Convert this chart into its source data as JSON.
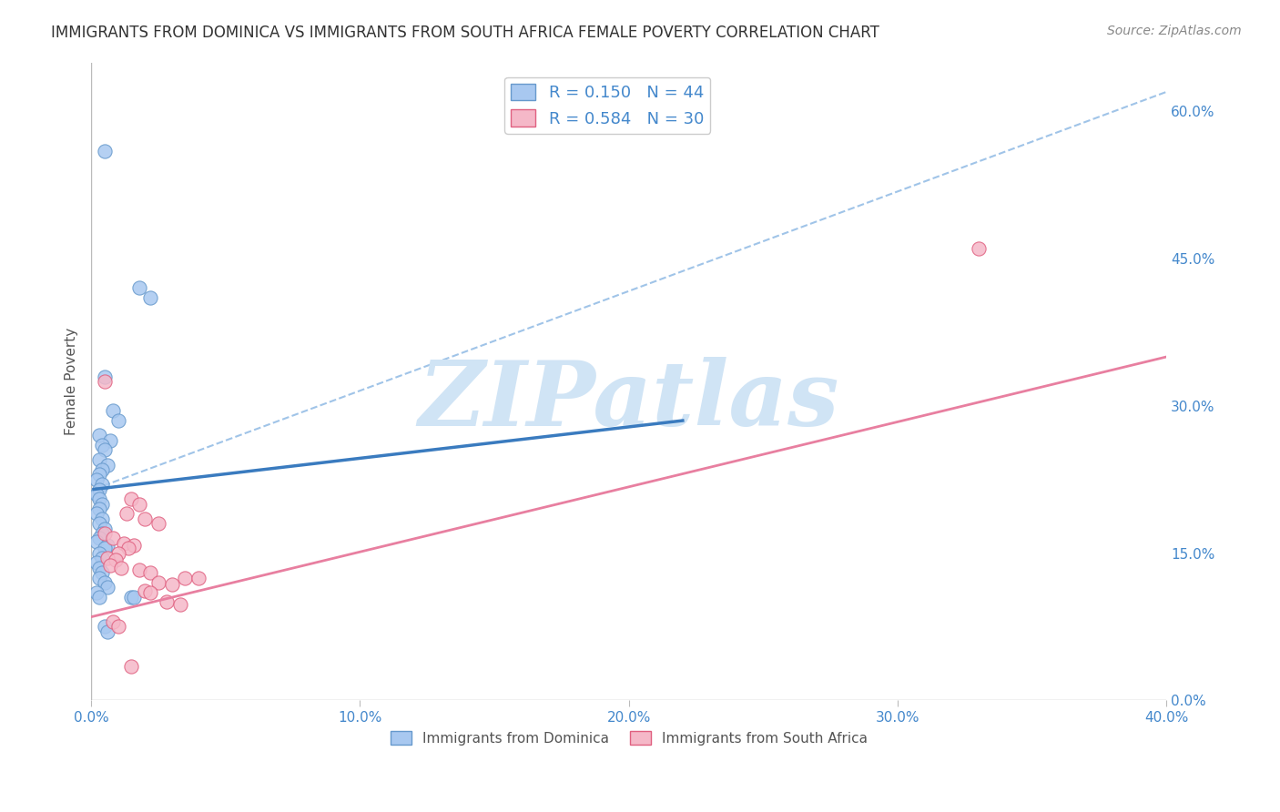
{
  "title": "IMMIGRANTS FROM DOMINICA VS IMMIGRANTS FROM SOUTH AFRICA FEMALE POVERTY CORRELATION CHART",
  "source": "Source: ZipAtlas.com",
  "ylabel": "Female Poverty",
  "xlim": [
    0.0,
    0.4
  ],
  "ylim": [
    0.0,
    0.65
  ],
  "yticks": [
    0.0,
    0.15,
    0.3,
    0.45,
    0.6
  ],
  "xticks": [
    0.0,
    0.1,
    0.2,
    0.3,
    0.4
  ],
  "legend_entries": [
    {
      "label": "R = 0.150   N = 44",
      "color": "#7fb3e8"
    },
    {
      "label": "R = 0.584   N = 30",
      "color": "#f48fb1"
    }
  ],
  "bottom_legend": [
    {
      "label": "Immigrants from Dominica",
      "color": "#7fb3e8"
    },
    {
      "label": "Immigrants from South Africa",
      "color": "#f48fb1"
    }
  ],
  "dominica_scatter": [
    [
      0.005,
      0.56
    ],
    [
      0.018,
      0.42
    ],
    [
      0.022,
      0.41
    ],
    [
      0.005,
      0.33
    ],
    [
      0.008,
      0.295
    ],
    [
      0.01,
      0.285
    ],
    [
      0.003,
      0.27
    ],
    [
      0.007,
      0.265
    ],
    [
      0.004,
      0.26
    ],
    [
      0.005,
      0.255
    ],
    [
      0.003,
      0.245
    ],
    [
      0.006,
      0.24
    ],
    [
      0.004,
      0.235
    ],
    [
      0.003,
      0.23
    ],
    [
      0.002,
      0.225
    ],
    [
      0.004,
      0.22
    ],
    [
      0.003,
      0.215
    ],
    [
      0.002,
      0.21
    ],
    [
      0.003,
      0.205
    ],
    [
      0.004,
      0.2
    ],
    [
      0.003,
      0.195
    ],
    [
      0.002,
      0.19
    ],
    [
      0.004,
      0.185
    ],
    [
      0.003,
      0.18
    ],
    [
      0.005,
      0.175
    ],
    [
      0.004,
      0.17
    ],
    [
      0.003,
      0.165
    ],
    [
      0.002,
      0.162
    ],
    [
      0.006,
      0.158
    ],
    [
      0.005,
      0.155
    ],
    [
      0.003,
      0.15
    ],
    [
      0.004,
      0.145
    ],
    [
      0.002,
      0.14
    ],
    [
      0.003,
      0.135
    ],
    [
      0.004,
      0.13
    ],
    [
      0.003,
      0.125
    ],
    [
      0.005,
      0.12
    ],
    [
      0.006,
      0.115
    ],
    [
      0.002,
      0.11
    ],
    [
      0.003,
      0.105
    ],
    [
      0.015,
      0.105
    ],
    [
      0.016,
      0.105
    ],
    [
      0.005,
      0.075
    ],
    [
      0.006,
      0.07
    ]
  ],
  "south_africa_scatter": [
    [
      0.005,
      0.325
    ],
    [
      0.015,
      0.205
    ],
    [
      0.018,
      0.2
    ],
    [
      0.013,
      0.19
    ],
    [
      0.02,
      0.185
    ],
    [
      0.025,
      0.18
    ],
    [
      0.005,
      0.17
    ],
    [
      0.008,
      0.165
    ],
    [
      0.012,
      0.16
    ],
    [
      0.016,
      0.158
    ],
    [
      0.014,
      0.155
    ],
    [
      0.01,
      0.15
    ],
    [
      0.006,
      0.145
    ],
    [
      0.009,
      0.143
    ],
    [
      0.007,
      0.138
    ],
    [
      0.011,
      0.135
    ],
    [
      0.018,
      0.133
    ],
    [
      0.022,
      0.13
    ],
    [
      0.035,
      0.125
    ],
    [
      0.04,
      0.125
    ],
    [
      0.025,
      0.12
    ],
    [
      0.03,
      0.118
    ],
    [
      0.02,
      0.112
    ],
    [
      0.022,
      0.11
    ],
    [
      0.028,
      0.1
    ],
    [
      0.033,
      0.098
    ],
    [
      0.008,
      0.08
    ],
    [
      0.01,
      0.075
    ],
    [
      0.015,
      0.035
    ],
    [
      0.33,
      0.46
    ]
  ],
  "dominica_line": [
    [
      0.001,
      0.215
    ],
    [
      0.22,
      0.285
    ]
  ],
  "dominica_dashed_line": [
    [
      0.001,
      0.215
    ],
    [
      0.4,
      0.62
    ]
  ],
  "south_africa_line": [
    [
      0.0,
      0.085
    ],
    [
      0.4,
      0.35
    ]
  ],
  "dominica_line_color": "#3a7bbf",
  "dominica_dashed_color": "#a0c4e8",
  "south_africa_line_color": "#e87fa0",
  "scatter_blue_color": "#a8c8f0",
  "scatter_pink_color": "#f5b8c8",
  "scatter_blue_edge": "#6699cc",
  "scatter_pink_edge": "#e06080",
  "watermark_color": "#d0e4f5",
  "watermark_text": "ZIPatlas",
  "background_color": "#ffffff",
  "grid_color": "#cccccc",
  "title_color": "#333333",
  "axis_label_color": "#555555",
  "tick_label_color": "#4488cc",
  "source_color": "#888888"
}
